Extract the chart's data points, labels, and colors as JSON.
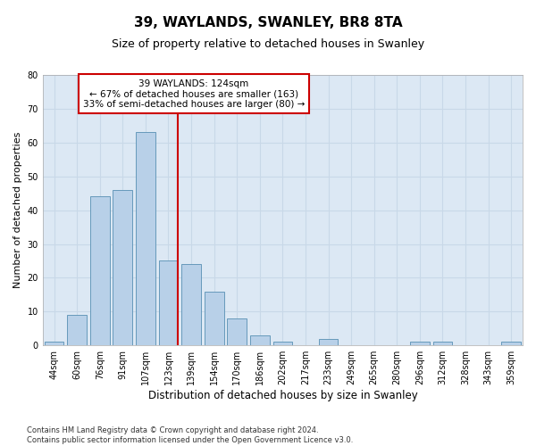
{
  "title1": "39, WAYLANDS, SWANLEY, BR8 8TA",
  "title2": "Size of property relative to detached houses in Swanley",
  "xlabel": "Distribution of detached houses by size in Swanley",
  "ylabel": "Number of detached properties",
  "categories": [
    "44sqm",
    "60sqm",
    "76sqm",
    "91sqm",
    "107sqm",
    "123sqm",
    "139sqm",
    "154sqm",
    "170sqm",
    "186sqm",
    "202sqm",
    "217sqm",
    "233sqm",
    "249sqm",
    "265sqm",
    "280sqm",
    "296sqm",
    "312sqm",
    "328sqm",
    "343sqm",
    "359sqm"
  ],
  "values": [
    1,
    9,
    44,
    46,
    63,
    25,
    24,
    16,
    8,
    3,
    1,
    0,
    2,
    0,
    0,
    0,
    1,
    1,
    0,
    0,
    1
  ],
  "bar_color": "#b8d0e8",
  "bar_edgecolor": "#6699bb",
  "vline_x_idx": 5,
  "vline_color": "#cc0000",
  "annotation_line1": "39 WAYLANDS: 124sqm",
  "annotation_line2": "← 67% of detached houses are smaller (163)",
  "annotation_line3": "33% of semi-detached houses are larger (80) →",
  "annotation_box_color": "#ffffff",
  "annotation_box_edgecolor": "#cc0000",
  "ylim": [
    0,
    80
  ],
  "yticks": [
    0,
    10,
    20,
    30,
    40,
    50,
    60,
    70,
    80
  ],
  "grid_color": "#c8d8e8",
  "background_color": "#dce8f4",
  "footnote": "Contains HM Land Registry data © Crown copyright and database right 2024.\nContains public sector information licensed under the Open Government Licence v3.0.",
  "title1_fontsize": 11,
  "title2_fontsize": 9,
  "xlabel_fontsize": 8.5,
  "ylabel_fontsize": 8,
  "tick_fontsize": 7,
  "annot_fontsize": 7.5,
  "footnote_fontsize": 6
}
